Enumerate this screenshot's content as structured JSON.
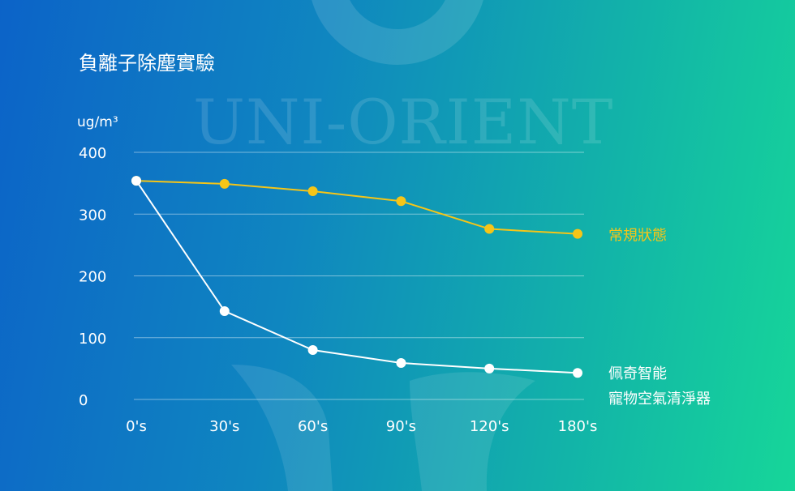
{
  "colors": {
    "white_series": "#ffffff",
    "yellow_series": "#f5c518",
    "grid": "rgba(255,255,255,0.45)",
    "watermark": "rgba(255,255,255,0.13)"
  },
  "watermark": {
    "text": "UNI-ORIENT"
  },
  "chart_data": {
    "type": "line",
    "title": "負離子除塵實驗",
    "ylabel": "ug/m³",
    "xlabel": "",
    "categories": [
      "0's",
      "30's",
      "60's",
      "90's",
      "120's",
      "180's"
    ],
    "yticks": [
      0,
      100,
      200,
      300,
      400
    ],
    "ylim": [
      0,
      400
    ],
    "grid": true,
    "legend": "right, beside line ends",
    "series": [
      {
        "name": "常規狀態",
        "color": "#f5c518",
        "values": [
          354,
          349,
          337,
          321,
          276,
          268
        ]
      },
      {
        "name": "佩奇智能 寵物空氣清淨器",
        "label_lines": [
          "佩奇智能",
          "寵物空氣清淨器"
        ],
        "color": "#ffffff",
        "values": [
          354,
          143,
          80,
          59,
          50,
          43
        ]
      }
    ]
  }
}
